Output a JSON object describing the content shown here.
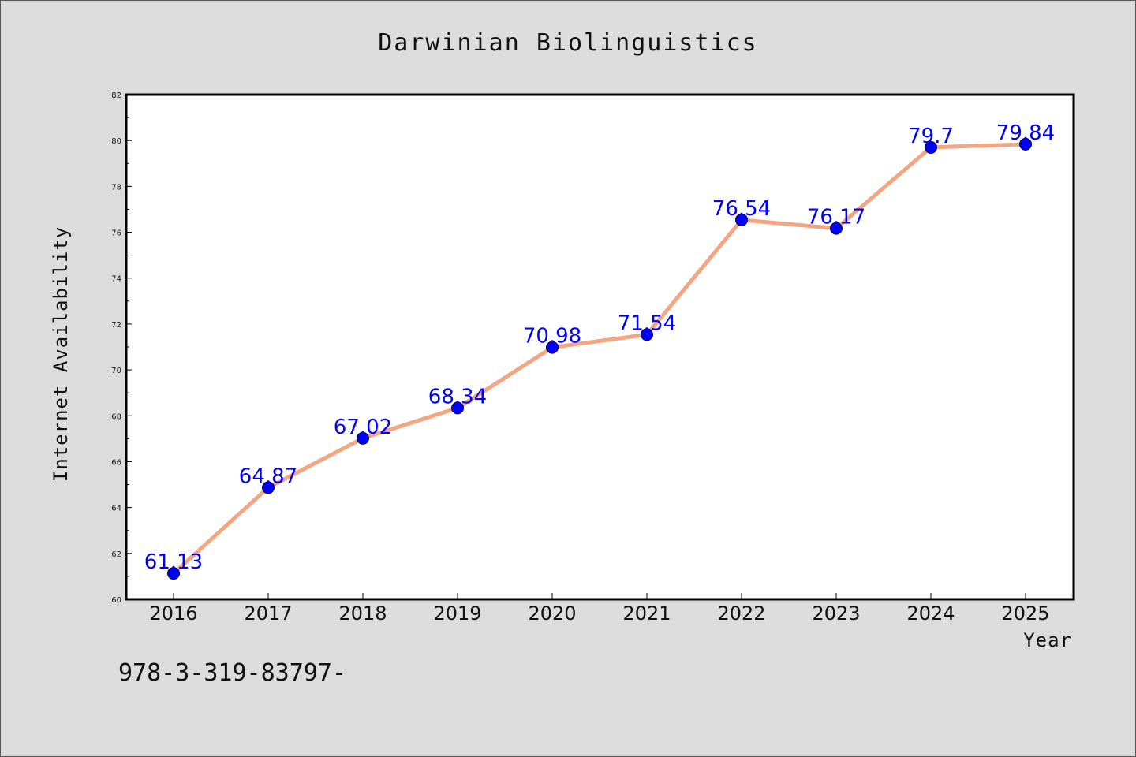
{
  "chart_data": {
    "type": "line",
    "title": "Darwinian Biolinguistics",
    "xlabel": "Year",
    "ylabel": "Internet Availability",
    "categories": [
      "2016",
      "2017",
      "2018",
      "2019",
      "2020",
      "2021",
      "2022",
      "2023",
      "2024",
      "2025"
    ],
    "values": [
      61.13,
      64.87,
      67.02,
      68.34,
      70.98,
      71.54,
      76.54,
      76.17,
      79.7,
      79.84
    ],
    "data_labels": [
      "61.13",
      "64.87",
      "67.02",
      "68.34",
      "70.98",
      "71.54",
      "76.54",
      "76.17",
      "79.7",
      "79.84"
    ],
    "ylim": [
      60,
      82
    ],
    "yticks": [
      "60",
      "62",
      "64",
      "66",
      "68",
      "70",
      "72",
      "74",
      "76",
      "78",
      "80",
      "82"
    ],
    "grid": false,
    "legend": "none",
    "line_color": "#f4a582",
    "marker_color": "#0000ff",
    "label_color": "#0000ff"
  },
  "caption": "978-3-319-83797-"
}
